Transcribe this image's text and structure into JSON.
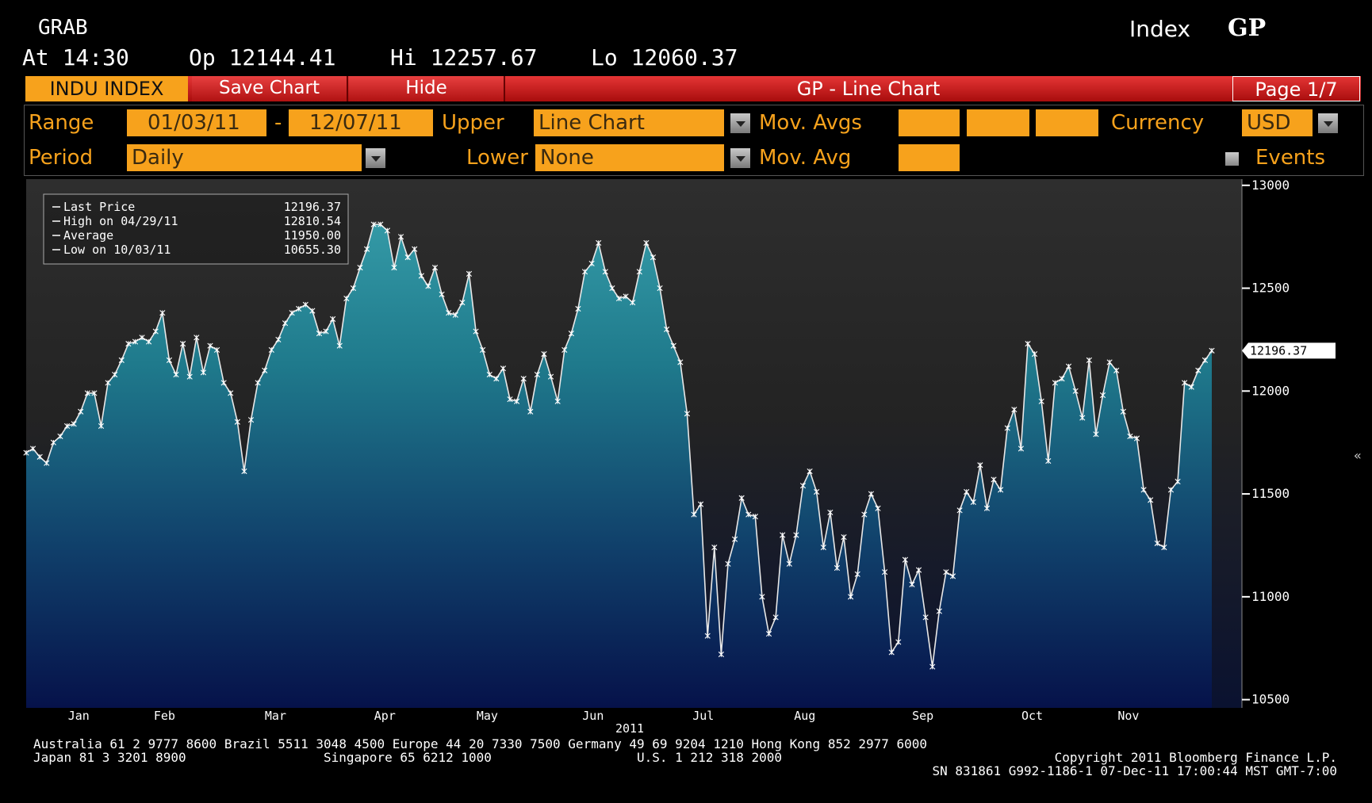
{
  "header": {
    "ticker": "GRAB",
    "type": "Index",
    "code": "GP",
    "time": "At 14:30",
    "open": "Op 12144.41",
    "high": "Hi 12257.67",
    "low": "Lo 12060.37"
  },
  "menu": {
    "security": "INDU INDEX",
    "save": "Save Chart",
    "hide": "Hide",
    "title": "GP - Line Chart",
    "page": "Page 1/7"
  },
  "toolbar": {
    "range_label": "Range",
    "range_start": "01/03/11",
    "range_sep": "-",
    "range_end": "12/07/11",
    "upper_label": "Upper",
    "upper_value": "Line Chart",
    "mov_avgs_label": "Mov. Avgs",
    "currency_label": "Currency",
    "currency_value": "USD",
    "period_label": "Period",
    "period_value": "Daily",
    "lower_label": "Lower",
    "lower_value": "None",
    "mov_avg_label": "Mov. Avg",
    "events_label": "Events"
  },
  "chart_data": {
    "type": "line",
    "legend": [
      {
        "label": "Last Price",
        "value": "12196.37"
      },
      {
        "label": "High on 04/29/11",
        "value": "12810.54"
      },
      {
        "label": "Average",
        "value": "11950.00"
      },
      {
        "label": "Low on 10/03/11",
        "value": "10655.30"
      }
    ],
    "months": [
      "Jan",
      "Feb",
      "Mar",
      "Apr",
      "May",
      "Jun",
      "Jul",
      "Aug",
      "Sep",
      "Oct",
      "Nov"
    ],
    "year": "2011",
    "last_price_tag": "12196.37",
    "collapse_icon": "«",
    "values": [
      11700,
      11720,
      11680,
      11650,
      11750,
      11780,
      11830,
      11840,
      11900,
      11990,
      11990,
      11830,
      12040,
      12080,
      12150,
      12230,
      12240,
      12260,
      12240,
      12290,
      12380,
      12150,
      12080,
      12230,
      12070,
      12260,
      12090,
      12220,
      12200,
      12040,
      11990,
      11850,
      11610,
      11860,
      12040,
      12100,
      12200,
      12250,
      12330,
      12380,
      12400,
      12420,
      12390,
      12280,
      12290,
      12350,
      12220,
      12450,
      12500,
      12600,
      12690,
      12810,
      12810,
      12780,
      12600,
      12750,
      12650,
      12690,
      12560,
      12510,
      12600,
      12470,
      12380,
      12370,
      12430,
      12570,
      12290,
      12200,
      12080,
      12060,
      12110,
      11960,
      11950,
      12060,
      11900,
      12080,
      12180,
      12070,
      11950,
      12200,
      12280,
      12400,
      12580,
      12620,
      12720,
      12580,
      12500,
      12450,
      12460,
      12430,
      12580,
      12720,
      12650,
      12500,
      12300,
      12220,
      12140,
      11890,
      11400,
      11450,
      10810,
      11240,
      10720,
      11160,
      11280,
      11480,
      11400,
      11390,
      11000,
      10820,
      10900,
      11300,
      11160,
      11300,
      11540,
      11610,
      11510,
      11240,
      11410,
      11140,
      11290,
      11000,
      11110,
      11400,
      11500,
      11430,
      11120,
      10730,
      10780,
      11180,
      11060,
      11130,
      10900,
      10660,
      10930,
      11120,
      11100,
      11420,
      11510,
      11460,
      11640,
      11430,
      11570,
      11520,
      11820,
      11910,
      11720,
      12230,
      12180,
      11950,
      11660,
      12040,
      12060,
      12120,
      12000,
      11870,
      12150,
      11790,
      11980,
      12140,
      12100,
      11900,
      11780,
      11770,
      11520,
      11470,
      11260,
      11240,
      11520,
      11560,
      12040,
      12020,
      12100,
      12150,
      12196.37
    ],
    "color": "#e8e8e8",
    "ylim": [
      10460,
      13030
    ],
    "yticks": [
      10500,
      11000,
      11500,
      12000,
      12500,
      13000
    ]
  },
  "footer": {
    "line1": "Australia 61 2 9777 8600 Brazil 5511 3048 4500 Europe 44 20 7330 7500 Germany 49 69 9204 1210 Hong Kong 852 2977 6000",
    "japan": "Japan 81 3 3201 8900",
    "singapore": "Singapore 65 6212 1000",
    "us": "U.S. 1 212 318 2000",
    "copyright": "Copyright 2011 Bloomberg Finance L.P.",
    "line3": "SN 831861 G992-1186-1 07-Dec-11 17:00:44 MST  GMT-7:00"
  }
}
